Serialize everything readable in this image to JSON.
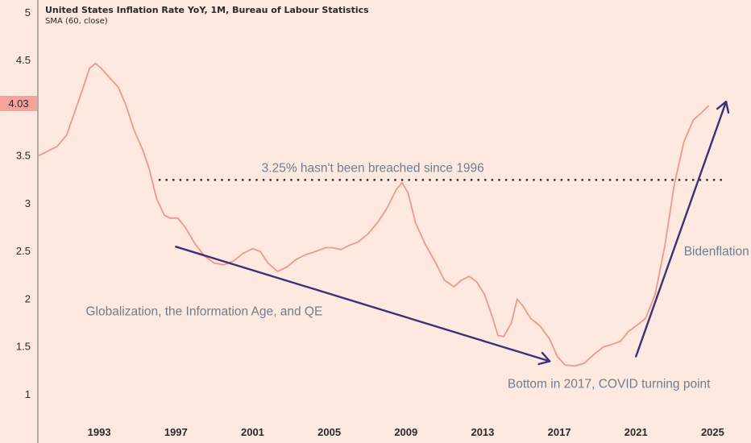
{
  "header": {
    "title": "United States Inflation Rate YoY, 1M, Bureau of Labour Statistics",
    "indicator": "SMA (60, close)"
  },
  "price_badge": "4.03",
  "colors": {
    "background": "#fde9df",
    "series": "#f5958a",
    "arrow": "#3b3278",
    "annotation_text": "#6f7e8e",
    "badge": "#f6a39b",
    "axis_text": "#2a2a2a"
  },
  "chart_data": {
    "type": "line",
    "title": "United States Inflation Rate YoY, 1M, Bureau of Labour Statistics",
    "xlabel": "",
    "ylabel": "",
    "xlim": [
      1989.8,
      2027.0
    ],
    "ylim": [
      0.62,
      5.0
    ],
    "x_ticks": [
      1993,
      1997,
      2001,
      2005,
      2009,
      2013,
      2017,
      2021,
      2025
    ],
    "y_ticks": [
      1,
      1.5,
      2,
      2.5,
      3,
      3.5,
      4,
      4.5,
      5
    ],
    "y_tick_labels": [
      "1",
      "1.5",
      "2",
      "2.5",
      "3",
      "3.5",
      "",
      "4.5",
      "5"
    ],
    "grid": false,
    "series": [
      {
        "name": "SMA (60, close)",
        "points": [
          [
            1989.8,
            3.5
          ],
          [
            1990.3,
            3.55
          ],
          [
            1990.8,
            3.6
          ],
          [
            1991.3,
            3.72
          ],
          [
            1991.7,
            3.95
          ],
          [
            1992.1,
            4.18
          ],
          [
            1992.5,
            4.42
          ],
          [
            1992.8,
            4.47
          ],
          [
            1993.1,
            4.42
          ],
          [
            1993.5,
            4.33
          ],
          [
            1994.0,
            4.22
          ],
          [
            1994.4,
            4.03
          ],
          [
            1994.8,
            3.78
          ],
          [
            1995.3,
            3.55
          ],
          [
            1995.6,
            3.37
          ],
          [
            1996.0,
            3.05
          ],
          [
            1996.4,
            2.88
          ],
          [
            1996.7,
            2.85
          ],
          [
            1997.1,
            2.85
          ],
          [
            1997.5,
            2.75
          ],
          [
            1998.0,
            2.58
          ],
          [
            1998.5,
            2.45
          ],
          [
            1999.0,
            2.38
          ],
          [
            1999.5,
            2.36
          ],
          [
            2000.0,
            2.4
          ],
          [
            2000.5,
            2.48
          ],
          [
            2001.0,
            2.53
          ],
          [
            2001.4,
            2.5
          ],
          [
            2001.8,
            2.38
          ],
          [
            2002.3,
            2.29
          ],
          [
            2002.8,
            2.34
          ],
          [
            2003.3,
            2.42
          ],
          [
            2003.8,
            2.47
          ],
          [
            2004.3,
            2.5
          ],
          [
            2004.8,
            2.54
          ],
          [
            2005.2,
            2.54
          ],
          [
            2005.6,
            2.52
          ],
          [
            2006.0,
            2.56
          ],
          [
            2006.5,
            2.6
          ],
          [
            2007.0,
            2.68
          ],
          [
            2007.5,
            2.8
          ],
          [
            2008.0,
            2.95
          ],
          [
            2008.5,
            3.15
          ],
          [
            2008.8,
            3.22
          ],
          [
            2009.1,
            3.12
          ],
          [
            2009.5,
            2.8
          ],
          [
            2010.0,
            2.58
          ],
          [
            2010.5,
            2.4
          ],
          [
            2011.0,
            2.2
          ],
          [
            2011.5,
            2.13
          ],
          [
            2011.9,
            2.2
          ],
          [
            2012.3,
            2.24
          ],
          [
            2012.7,
            2.18
          ],
          [
            2013.1,
            2.05
          ],
          [
            2013.5,
            1.82
          ],
          [
            2013.8,
            1.62
          ],
          [
            2014.1,
            1.61
          ],
          [
            2014.5,
            1.75
          ],
          [
            2014.8,
            2.0
          ],
          [
            2015.1,
            1.93
          ],
          [
            2015.5,
            1.8
          ],
          [
            2016.0,
            1.72
          ],
          [
            2016.5,
            1.58
          ],
          [
            2016.9,
            1.4
          ],
          [
            2017.3,
            1.31
          ],
          [
            2017.8,
            1.3
          ],
          [
            2018.3,
            1.33
          ],
          [
            2018.8,
            1.42
          ],
          [
            2019.3,
            1.5
          ],
          [
            2019.8,
            1.53
          ],
          [
            2020.2,
            1.56
          ],
          [
            2020.6,
            1.66
          ],
          [
            2021.0,
            1.72
          ],
          [
            2021.5,
            1.8
          ],
          [
            2022.0,
            2.05
          ],
          [
            2022.5,
            2.55
          ],
          [
            2023.0,
            3.2
          ],
          [
            2023.5,
            3.65
          ],
          [
            2024.0,
            3.88
          ],
          [
            2024.4,
            3.95
          ],
          [
            2024.8,
            4.03
          ]
        ]
      }
    ],
    "reference_line": {
      "y": 3.25,
      "x_start": 1996.1,
      "x_end": 2025.7,
      "label": "3.25% hasn't been breached since 1996"
    },
    "annotations": [
      {
        "text": "Globalization, the Information Age, and QE",
        "x": 1992.3,
        "y": 1.83
      },
      {
        "text": "Bottom in 2017, COVID turning point",
        "x": 2014.3,
        "y": 1.07
      },
      {
        "text": "Bidenflation",
        "x": 2023.5,
        "y": 2.46
      }
    ],
    "arrows": [
      {
        "from": [
          1997.0,
          2.55
        ],
        "to": [
          2016.5,
          1.35
        ]
      },
      {
        "from": [
          2021.0,
          1.4
        ],
        "to": [
          2025.7,
          4.07
        ]
      }
    ]
  }
}
